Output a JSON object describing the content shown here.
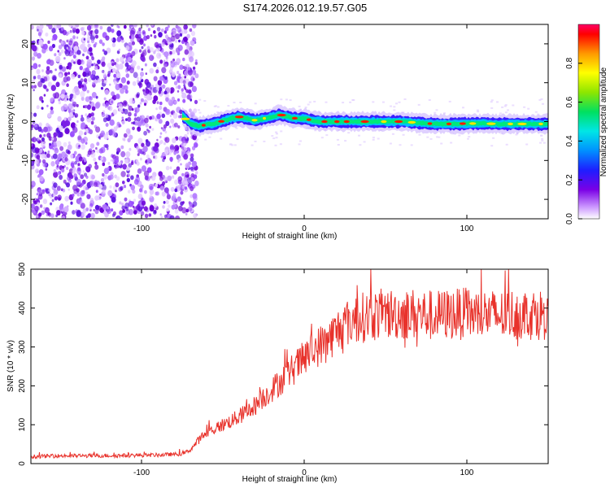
{
  "title": "S174.2026.012.19.57.G05",
  "chart_data": [
    {
      "type": "heatmap",
      "title": "S174.2026.012.19.57.G05",
      "xlabel": "Height of straight line (km)",
      "ylabel": "Frequency (Hz)",
      "xlim": [
        -168,
        150
      ],
      "ylim": [
        -25,
        25
      ],
      "xticks": [
        -100,
        0,
        100
      ],
      "yticks": [
        -20,
        -10,
        0,
        10,
        20
      ],
      "noise_region_x": [
        -168,
        -70
      ],
      "signal_track": {
        "x": [
          -75,
          -70,
          -65,
          -60,
          -55,
          -50,
          -45,
          -40,
          -35,
          -30,
          -25,
          -20,
          -15,
          -10,
          -5,
          0,
          5,
          10,
          20,
          30,
          40,
          50,
          60,
          70,
          80,
          90,
          100,
          110,
          120,
          130,
          140,
          150
        ],
        "frequency": [
          1.5,
          -0.5,
          -1.2,
          -0.8,
          -0.5,
          0.2,
          0.8,
          1.2,
          0.8,
          0.3,
          0.8,
          1.2,
          1.8,
          1.2,
          0.8,
          0.8,
          0.3,
          0.0,
          0.0,
          0.0,
          0.0,
          0.0,
          0.0,
          -0.3,
          -0.6,
          -0.6,
          -0.5,
          -0.5,
          -0.6,
          -0.6,
          -0.6,
          -0.6
        ]
      },
      "colorbar": {
        "label": "Normalized spectral amplitude",
        "ticks": [
          0.0,
          0.2,
          0.4,
          0.6,
          0.8
        ],
        "tick_labels": [
          "0.0",
          "0.2",
          "0.4",
          "0.6",
          "0.8"
        ],
        "range": [
          0,
          1
        ]
      }
    },
    {
      "type": "line",
      "xlabel": "Height of straight line (km)",
      "ylabel": "SNR (10 * v/v)",
      "xlim": [
        -168,
        150
      ],
      "ylim": [
        0,
        500
      ],
      "xticks": [
        -100,
        0,
        100
      ],
      "yticks": [
        0,
        100,
        200,
        300,
        400,
        500
      ],
      "series": [
        {
          "name": "SNR",
          "color": "#e8322b",
          "x": [
            -168,
            -150,
            -130,
            -110,
            -90,
            -75,
            -70,
            -65,
            -60,
            -55,
            -50,
            -45,
            -40,
            -35,
            -30,
            -25,
            -20,
            -15,
            -10,
            -5,
            0,
            5,
            10,
            15,
            20,
            25,
            30,
            35,
            40,
            50,
            60,
            70,
            80,
            90,
            100,
            110,
            120,
            130,
            140,
            150
          ],
          "y": [
            18,
            20,
            20,
            21,
            22,
            25,
            35,
            60,
            80,
            90,
            100,
            110,
            120,
            135,
            150,
            170,
            190,
            210,
            230,
            250,
            270,
            290,
            305,
            320,
            340,
            360,
            370,
            375,
            380,
            385,
            385,
            385,
            380,
            385,
            385,
            385,
            380,
            385,
            385,
            385
          ]
        }
      ]
    }
  ]
}
